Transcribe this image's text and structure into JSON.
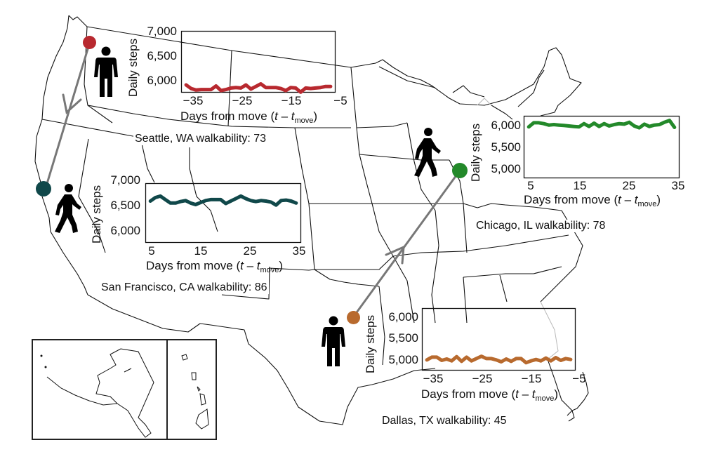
{
  "figure": {
    "description": "Map of contiguous United States with city moves and daily step time series"
  },
  "moves": [
    {
      "from": "Seattle, WA",
      "to": "San Francisco, CA"
    },
    {
      "from": "Dallas, TX",
      "to": "Chicago, IL"
    }
  ],
  "colors": {
    "seattle": "#b8292f",
    "san_francisco": "#10484a",
    "chicago": "#23892a",
    "dallas": "#b86a2e",
    "arrow": "#777777",
    "map_line": "#111111"
  },
  "panels": {
    "seattle": {
      "caption": "Seattle, WA walkability: 73",
      "ylabel": "Daily steps",
      "yticks": [
        "7,000",
        "6,500",
        "6,000"
      ],
      "xticks": [
        "−35",
        "−25",
        "−15",
        "−5"
      ],
      "xlabel_prefix": "Days from move (",
      "xlabel_t": "t",
      "xlabel_minus": " – ",
      "xlabel_tmove": "t",
      "xlabel_sub": "move",
      "xlabel_suffix": ")"
    },
    "san_francisco": {
      "caption": "San Francisco, CA walkability: 86",
      "ylabel": "Daily steps",
      "yticks": [
        "7,000",
        "6,500",
        "6,000"
      ],
      "xticks": [
        "5",
        "15",
        "25",
        "35"
      ],
      "xlabel_prefix": "Days from move (",
      "xlabel_t": "t",
      "xlabel_minus": " – ",
      "xlabel_tmove": "t",
      "xlabel_sub": "move",
      "xlabel_suffix": ")"
    },
    "chicago": {
      "caption": "Chicago, IL walkability: 78",
      "ylabel": "Daily steps",
      "yticks": [
        "6,000",
        "5,500",
        "5,000"
      ],
      "xticks": [
        "5",
        "15",
        "25",
        "35"
      ],
      "xlabel_prefix": "Days from move (",
      "xlabel_t": "t",
      "xlabel_minus": " – ",
      "xlabel_tmove": "t",
      "xlabel_sub": "move",
      "xlabel_suffix": ")"
    },
    "dallas": {
      "caption": "Dallas, TX walkability: 45",
      "ylabel": "Daily steps",
      "yticks": [
        "6,000",
        "5,500",
        "5,000"
      ],
      "xticks": [
        "−35",
        "−25",
        "−15",
        "−5"
      ],
      "xlabel_prefix": "Days from move (",
      "xlabel_t": "t",
      "xlabel_minus": " – ",
      "xlabel_tmove": "t",
      "xlabel_sub": "move",
      "xlabel_suffix": ")"
    }
  },
  "chart_data": [
    {
      "type": "line",
      "title": "Seattle, WA walkability: 73",
      "xlabel": "Days from move (t – t_move)",
      "ylabel": "Daily steps",
      "xlim": [
        -36,
        -5
      ],
      "ylim": [
        5900,
        7100
      ],
      "yticks": [
        6000,
        6500,
        7000
      ],
      "xticks": [
        -35,
        -25,
        -15,
        -5
      ],
      "color": "#b8292f",
      "x": [
        -35,
        -34,
        -33,
        -32,
        -31,
        -30,
        -29,
        -28,
        -27,
        -26,
        -25,
        -24,
        -23,
        -22,
        -21,
        -20,
        -19,
        -18,
        -17,
        -16,
        -15,
        -14,
        -13,
        -12,
        -11,
        -10,
        -9,
        -8,
        -7,
        -6
      ],
      "values": [
        6050,
        5980,
        5950,
        5960,
        5960,
        5960,
        6030,
        5940,
        5960,
        5990,
        6000,
        5990,
        6050,
        5970,
        6020,
        6070,
        6000,
        6000,
        6000,
        5980,
        5940,
        6000,
        5990,
        5910,
        5990,
        5980,
        5990,
        6000,
        6020,
        6020
      ]
    },
    {
      "type": "line",
      "title": "San Francisco, CA walkability: 86",
      "xlabel": "Days from move (t – t_move)",
      "ylabel": "Daily steps",
      "xlim": [
        4,
        35
      ],
      "ylim": [
        5850,
        7050
      ],
      "yticks": [
        6000,
        6500,
        7000
      ],
      "xticks": [
        5,
        15,
        25,
        35
      ],
      "color": "#10484a",
      "x": [
        5,
        6,
        7,
        8,
        9,
        10,
        11,
        12,
        13,
        14,
        15,
        16,
        17,
        18,
        19,
        20,
        21,
        22,
        23,
        24,
        25,
        26,
        27,
        28,
        29,
        30,
        31,
        32,
        33,
        34
      ],
      "values": [
        6690,
        6760,
        6790,
        6720,
        6650,
        6650,
        6680,
        6700,
        6650,
        6620,
        6660,
        6700,
        6720,
        6720,
        6720,
        6640,
        6690,
        6740,
        6790,
        6740,
        6700,
        6680,
        6700,
        6690,
        6670,
        6610,
        6700,
        6710,
        6690,
        6650
      ]
    },
    {
      "type": "line",
      "title": "Chicago, IL walkability: 78",
      "xlabel": "Days from move (t – t_move)",
      "ylabel": "Daily steps",
      "xlim": [
        4,
        35
      ],
      "ylim": [
        4850,
        6200
      ],
      "yticks": [
        5000,
        5500,
        6000
      ],
      "xticks": [
        5,
        15,
        25,
        35
      ],
      "color": "#23892a",
      "x": [
        5,
        6,
        7,
        8,
        9,
        10,
        11,
        12,
        13,
        14,
        15,
        16,
        17,
        18,
        19,
        20,
        21,
        22,
        23,
        24,
        25,
        26,
        27,
        28,
        29,
        30,
        31,
        32,
        33,
        34
      ],
      "values": [
        5960,
        6050,
        6050,
        6030,
        6000,
        6010,
        6000,
        5990,
        5980,
        5970,
        5960,
        6030,
        5970,
        6040,
        5970,
        6030,
        5980,
        6010,
        6030,
        6020,
        6060,
        5980,
        5940,
        6020,
        5970,
        6000,
        6010,
        6060,
        6100,
        5950
      ]
    },
    {
      "type": "line",
      "title": "Dallas, TX walkability: 45",
      "xlabel": "Days from move (t – t_move)",
      "ylabel": "Daily steps",
      "xlim": [
        -36,
        -5
      ],
      "ylim": [
        4850,
        6200
      ],
      "yticks": [
        5000,
        5500,
        6000
      ],
      "xticks": [
        -35,
        -25,
        -15,
        -5
      ],
      "color": "#b86a2e",
      "x": [
        -35,
        -34,
        -33,
        -32,
        -31,
        -30,
        -29,
        -28,
        -27,
        -26,
        -25,
        -24,
        -23,
        -22,
        -21,
        -20,
        -19,
        -18,
        -17,
        -16,
        -15,
        -14,
        -13,
        -12,
        -11,
        -10,
        -9,
        -8,
        -7,
        -6
      ],
      "values": [
        5080,
        5140,
        5140,
        5070,
        5100,
        5060,
        5150,
        5050,
        5140,
        5060,
        5110,
        5160,
        5110,
        5110,
        5080,
        5040,
        5100,
        5050,
        5110,
        5110,
        5020,
        5060,
        5090,
        5060,
        5120,
        5060,
        5130,
        5070,
        5110,
        5090
      ]
    }
  ]
}
